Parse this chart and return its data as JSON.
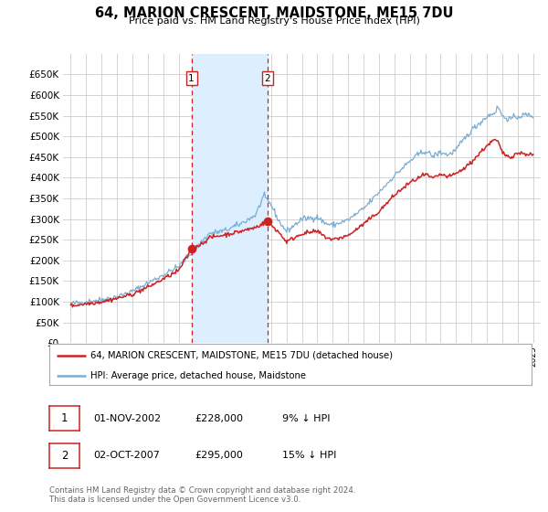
{
  "title": "64, MARION CRESCENT, MAIDSTONE, ME15 7DU",
  "subtitle": "Price paid vs. HM Land Registry's House Price Index (HPI)",
  "legend_label_red": "64, MARION CRESCENT, MAIDSTONE, ME15 7DU (detached house)",
  "legend_label_blue": "HPI: Average price, detached house, Maidstone",
  "transaction1_date": "01-NOV-2002",
  "transaction1_price": "£228,000",
  "transaction1_hpi": "9% ↓ HPI",
  "transaction2_date": "02-OCT-2007",
  "transaction2_price": "£295,000",
  "transaction2_hpi": "15% ↓ HPI",
  "footer": "Contains HM Land Registry data © Crown copyright and database right 2024.\nThis data is licensed under the Open Government Licence v3.0.",
  "sale1_year": 2002.83,
  "sale1_value": 228000,
  "sale2_year": 2007.75,
  "sale2_value": 295000,
  "hpi_color": "#7aadd4",
  "price_color": "#cc2222",
  "highlight_color": "#ddeeff",
  "background_color": "#ffffff",
  "grid_color": "#cccccc",
  "ylim_min": 0,
  "ylim_max": 700000,
  "ytick_step": 50000,
  "ytick_max": 650000,
  "xmin": 1994.5,
  "xmax": 2025.5,
  "hpi_anchors": [
    [
      1995.0,
      95000
    ],
    [
      1996.0,
      100000
    ],
    [
      1997.0,
      105000
    ],
    [
      1998.0,
      112000
    ],
    [
      1999.0,
      125000
    ],
    [
      2000.0,
      145000
    ],
    [
      2001.0,
      165000
    ],
    [
      2002.0,
      185000
    ],
    [
      2003.0,
      225000
    ],
    [
      2004.0,
      265000
    ],
    [
      2005.0,
      272000
    ],
    [
      2006.0,
      288000
    ],
    [
      2007.0,
      310000
    ],
    [
      2007.5,
      355000
    ],
    [
      2008.0,
      335000
    ],
    [
      2008.5,
      295000
    ],
    [
      2009.0,
      270000
    ],
    [
      2009.5,
      285000
    ],
    [
      2010.0,
      300000
    ],
    [
      2011.0,
      305000
    ],
    [
      2011.5,
      290000
    ],
    [
      2012.0,
      285000
    ],
    [
      2013.0,
      298000
    ],
    [
      2014.0,
      325000
    ],
    [
      2015.0,
      365000
    ],
    [
      2016.0,
      405000
    ],
    [
      2017.0,
      440000
    ],
    [
      2017.5,
      455000
    ],
    [
      2018.0,
      465000
    ],
    [
      2018.5,
      452000
    ],
    [
      2019.0,
      462000
    ],
    [
      2019.5,
      455000
    ],
    [
      2020.0,
      468000
    ],
    [
      2020.5,
      492000
    ],
    [
      2021.0,
      515000
    ],
    [
      2021.5,
      532000
    ],
    [
      2022.0,
      548000
    ],
    [
      2022.5,
      558000
    ],
    [
      2022.75,
      572000
    ],
    [
      2023.0,
      548000
    ],
    [
      2023.5,
      542000
    ],
    [
      2024.0,
      548000
    ],
    [
      2024.5,
      552000
    ],
    [
      2025.0,
      550000
    ]
  ],
  "price_anchors": [
    [
      1995.0,
      90000
    ],
    [
      1996.0,
      95000
    ],
    [
      1997.0,
      100000
    ],
    [
      1998.0,
      108000
    ],
    [
      1999.0,
      118000
    ],
    [
      2000.0,
      135000
    ],
    [
      2001.0,
      155000
    ],
    [
      2002.0,
      175000
    ],
    [
      2002.83,
      228000
    ],
    [
      2003.5,
      240000
    ],
    [
      2004.0,
      255000
    ],
    [
      2005.0,
      262000
    ],
    [
      2006.0,
      270000
    ],
    [
      2007.0,
      280000
    ],
    [
      2007.75,
      295000
    ],
    [
      2008.5,
      268000
    ],
    [
      2009.0,
      245000
    ],
    [
      2009.5,
      255000
    ],
    [
      2010.0,
      265000
    ],
    [
      2011.0,
      270000
    ],
    [
      2011.5,
      257000
    ],
    [
      2012.0,
      250000
    ],
    [
      2013.0,
      260000
    ],
    [
      2014.0,
      288000
    ],
    [
      2015.0,
      318000
    ],
    [
      2016.0,
      358000
    ],
    [
      2017.0,
      388000
    ],
    [
      2017.5,
      398000
    ],
    [
      2018.0,
      408000
    ],
    [
      2018.5,
      398000
    ],
    [
      2019.0,
      408000
    ],
    [
      2019.5,
      402000
    ],
    [
      2020.0,
      410000
    ],
    [
      2020.5,
      422000
    ],
    [
      2021.0,
      438000
    ],
    [
      2021.5,
      458000
    ],
    [
      2022.0,
      478000
    ],
    [
      2022.5,
      492000
    ],
    [
      2022.75,
      485000
    ],
    [
      2023.0,
      460000
    ],
    [
      2023.5,
      450000
    ],
    [
      2024.0,
      460000
    ],
    [
      2024.5,
      458000
    ],
    [
      2025.0,
      455000
    ]
  ]
}
